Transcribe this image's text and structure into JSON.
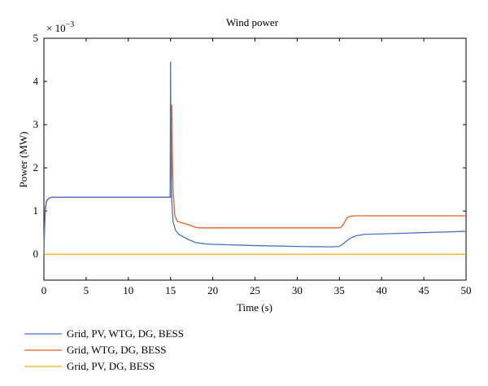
{
  "chart_data": {
    "type": "line",
    "title": "Wind power",
    "xlabel": "Time (s)",
    "ylabel": "Power (MW)",
    "y_exponent_label": "× 10",
    "y_exponent_power": "−3",
    "xlim": [
      0,
      50
    ],
    "ylim": [
      -0.6,
      5
    ],
    "x_ticks": [
      0,
      5,
      10,
      15,
      20,
      25,
      30,
      35,
      40,
      45,
      50
    ],
    "y_ticks": [
      0,
      1,
      2,
      3,
      4,
      5
    ],
    "grid": false,
    "legend_position": "below",
    "series": [
      {
        "name": "Grid, PV, WTG, DG, BESS",
        "color": "#4472C4",
        "points": [
          [
            0,
            0
          ],
          [
            0.05,
            0.4
          ],
          [
            0.15,
            1.0
          ],
          [
            0.3,
            1.22
          ],
          [
            0.6,
            1.3
          ],
          [
            1,
            1.32
          ],
          [
            5,
            1.32
          ],
          [
            10,
            1.32
          ],
          [
            14.9,
            1.32
          ],
          [
            14.95,
            1.32
          ],
          [
            15.0,
            4.45
          ],
          [
            15.05,
            2.0
          ],
          [
            15.15,
            1.2
          ],
          [
            15.3,
            0.75
          ],
          [
            15.6,
            0.55
          ],
          [
            16,
            0.46
          ],
          [
            17,
            0.35
          ],
          [
            18,
            0.27
          ],
          [
            19,
            0.24
          ],
          [
            20,
            0.23
          ],
          [
            25,
            0.2
          ],
          [
            30,
            0.18
          ],
          [
            34,
            0.17
          ],
          [
            35,
            0.18
          ],
          [
            35.5,
            0.25
          ],
          [
            36,
            0.33
          ],
          [
            36.5,
            0.39
          ],
          [
            37,
            0.43
          ],
          [
            38,
            0.46
          ],
          [
            40,
            0.47
          ],
          [
            45,
            0.5
          ],
          [
            50,
            0.53
          ]
        ]
      },
      {
        "name": "Grid, WTG, DG, BESS",
        "color": "#E2611E",
        "points": [
          [
            0,
            0
          ],
          [
            0.05,
            0.5
          ],
          [
            0.15,
            1.05
          ],
          [
            0.3,
            1.24
          ],
          [
            0.6,
            1.3
          ],
          [
            1,
            1.32
          ],
          [
            5,
            1.32
          ],
          [
            10,
            1.32
          ],
          [
            15.05,
            1.32
          ],
          [
            15.1,
            1.35
          ],
          [
            15.15,
            3.45
          ],
          [
            15.2,
            2.4
          ],
          [
            15.3,
            1.5
          ],
          [
            15.5,
            0.9
          ],
          [
            15.8,
            0.76
          ],
          [
            16.5,
            0.72
          ],
          [
            17.2,
            0.68
          ],
          [
            17.8,
            0.63
          ],
          [
            18.3,
            0.61
          ],
          [
            25,
            0.61
          ],
          [
            30,
            0.61
          ],
          [
            35.1,
            0.61
          ],
          [
            35.5,
            0.7
          ],
          [
            35.9,
            0.84
          ],
          [
            36.3,
            0.88
          ],
          [
            37,
            0.89
          ],
          [
            40,
            0.89
          ],
          [
            45,
            0.89
          ],
          [
            50,
            0.89
          ]
        ]
      },
      {
        "name": "Grid, PV, DG, BESS",
        "color": "#F2B51D",
        "points": [
          [
            0,
            0
          ],
          [
            50,
            0
          ]
        ]
      }
    ]
  }
}
